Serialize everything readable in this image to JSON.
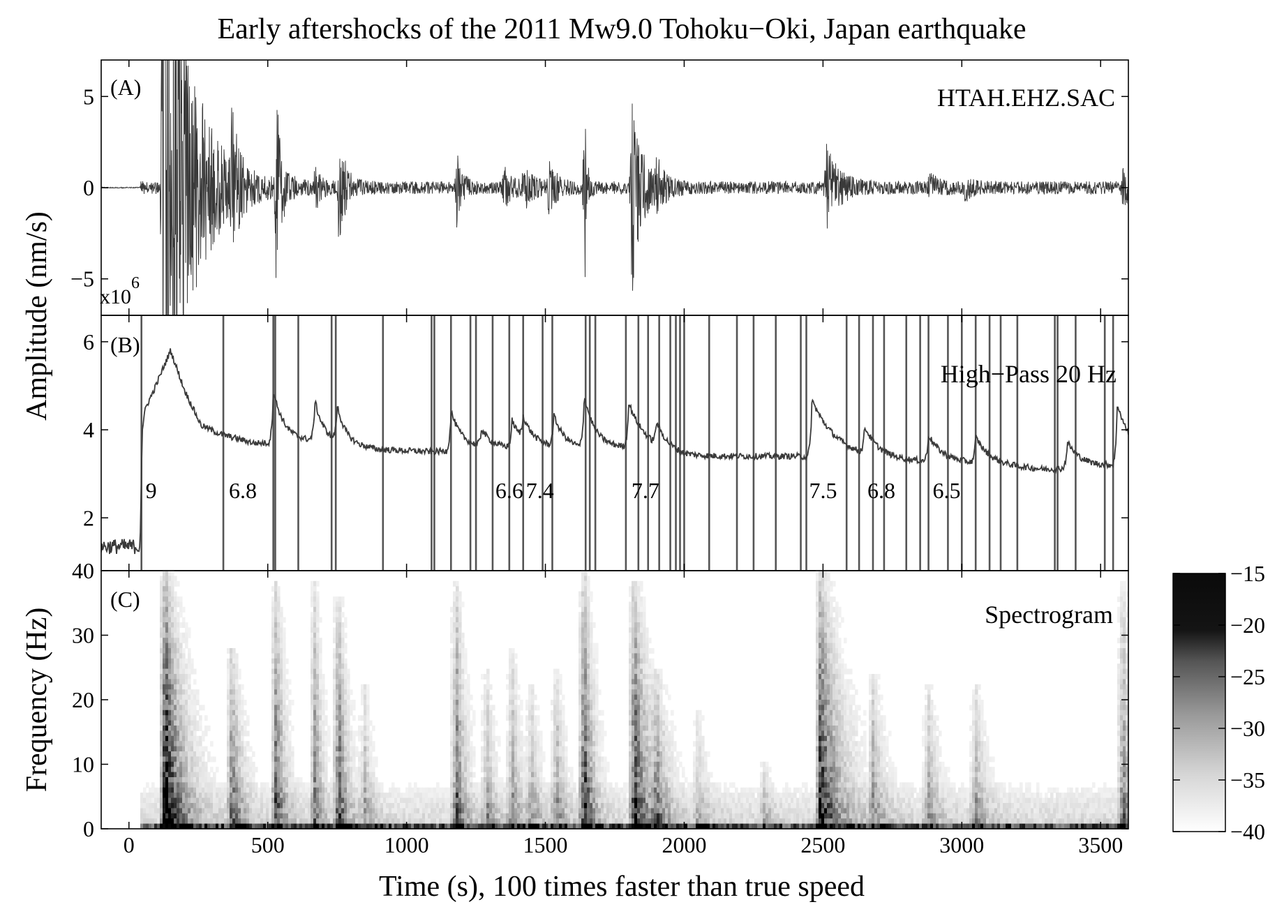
{
  "title": "Early aftershocks of the 2011 Mw9.0 Tohoku−Oki, Japan earthquake",
  "shared_x": {
    "label": "Time (s), 100 times faster than true speed",
    "range": [
      -100,
      3600
    ],
    "ticks": [
      0,
      500,
      1000,
      1500,
      2000,
      2500,
      3000,
      3500
    ]
  },
  "shared_ylabel": "Amplitude (nm/s)",
  "chart_data": [
    {
      "panel": "(A)",
      "type": "line",
      "annotation": "HTAH.EHZ.SAC",
      "ylim": [
        -7,
        7
      ],
      "yticks": [
        -5,
        0,
        5
      ],
      "ytick_labels": [
        "−5",
        "0",
        "5"
      ],
      "y_multiplier": "x10",
      "y_multiplier_exp": "6",
      "noise_base": 0.35,
      "events": [
        {
          "t": 120,
          "amp": 22,
          "decay": 90
        },
        {
          "t": 370,
          "amp": 3.2,
          "decay": 25
        },
        {
          "t": 530,
          "amp": 5.2,
          "decay": 20
        },
        {
          "t": 670,
          "amp": 1.2,
          "decay": 20
        },
        {
          "t": 755,
          "amp": 3.0,
          "decay": 25
        },
        {
          "t": 1180,
          "amp": 1.9,
          "decay": 20
        },
        {
          "t": 1350,
          "amp": 1.0,
          "decay": 30
        },
        {
          "t": 1420,
          "amp": 1.2,
          "decay": 30
        },
        {
          "t": 1510,
          "amp": 1.3,
          "decay": 30
        },
        {
          "t": 1640,
          "amp": 7.0,
          "decay": 8
        },
        {
          "t": 1810,
          "amp": 6.0,
          "decay": 35
        },
        {
          "t": 1900,
          "amp": 1.2,
          "decay": 30
        },
        {
          "t": 2510,
          "amp": 2.2,
          "decay": 45
        },
        {
          "t": 2880,
          "amp": 0.7,
          "decay": 30
        },
        {
          "t": 3010,
          "amp": 0.6,
          "decay": 30
        },
        {
          "t": 3580,
          "amp": 1.1,
          "decay": 20
        }
      ]
    },
    {
      "panel": "(B)",
      "type": "line",
      "annotation": "High−Pass 20 Hz",
      "ylim": [
        0.8,
        6.6
      ],
      "yticks": [
        2,
        4,
        6
      ],
      "ytick_labels": [
        "2",
        "4",
        "6"
      ],
      "pre_event_level": 1.35,
      "baseline": [
        [
          45,
          3.9
        ],
        [
          60,
          4.5
        ],
        [
          90,
          4.9
        ],
        [
          150,
          5.8
        ],
        [
          200,
          4.9
        ],
        [
          260,
          4.1
        ],
        [
          330,
          3.9
        ],
        [
          450,
          3.7
        ],
        [
          510,
          3.7
        ],
        [
          700,
          3.75
        ],
        [
          900,
          3.55
        ],
        [
          1100,
          3.5
        ],
        [
          1300,
          3.6
        ],
        [
          1500,
          3.6
        ],
        [
          1650,
          3.55
        ],
        [
          1800,
          3.6
        ],
        [
          2000,
          3.4
        ],
        [
          2400,
          3.4
        ],
        [
          2700,
          3.3
        ],
        [
          3000,
          3.25
        ],
        [
          3300,
          3.1
        ],
        [
          3600,
          3.2
        ]
      ],
      "bumps": [
        {
          "t": 520,
          "amp": 1.2,
          "tau": 40
        },
        {
          "t": 670,
          "amp": 0.9,
          "tau": 30
        },
        {
          "t": 750,
          "amp": 0.8,
          "tau": 30
        },
        {
          "t": 1160,
          "amp": 0.9,
          "tau": 40
        },
        {
          "t": 1270,
          "amp": 0.4,
          "tau": 30
        },
        {
          "t": 1380,
          "amp": 0.6,
          "tau": 40
        },
        {
          "t": 1420,
          "amp": 0.5,
          "tau": 40
        },
        {
          "t": 1530,
          "amp": 0.7,
          "tau": 40
        },
        {
          "t": 1640,
          "amp": 1.2,
          "tau": 40
        },
        {
          "t": 1800,
          "amp": 1.0,
          "tau": 60
        },
        {
          "t": 1900,
          "amp": 0.5,
          "tau": 40
        },
        {
          "t": 2460,
          "amp": 1.3,
          "tau": 90
        },
        {
          "t": 2650,
          "amp": 0.6,
          "tau": 50
        },
        {
          "t": 2880,
          "amp": 0.6,
          "tau": 50
        },
        {
          "t": 3050,
          "amp": 0.6,
          "tau": 50
        },
        {
          "t": 3380,
          "amp": 0.6,
          "tau": 50
        },
        {
          "t": 3560,
          "amp": 1.4,
          "tau": 60
        }
      ],
      "event_lines": [
        45,
        340,
        520,
        527,
        610,
        730,
        745,
        915,
        1090,
        1100,
        1160,
        1230,
        1250,
        1310,
        1370,
        1420,
        1490,
        1525,
        1645,
        1660,
        1680,
        1790,
        1835,
        1870,
        1910,
        1950,
        1970,
        1985,
        2000,
        2090,
        2190,
        2250,
        2330,
        2420,
        2440,
        2585,
        2630,
        2680,
        2720,
        2800,
        2850,
        2880,
        2950,
        3000,
        3050,
        3100,
        3140,
        3200,
        3335,
        3345,
        3410,
        3515,
        3545
      ],
      "magnitude_labels": [
        {
          "t": 60,
          "label": "9"
        },
        {
          "t": 360,
          "label": "6.8"
        },
        {
          "t": 1320,
          "label": "6.6"
        },
        {
          "t": 1430,
          "label": "7.4"
        },
        {
          "t": 1810,
          "label": "7.7"
        },
        {
          "t": 2450,
          "label": "7.5"
        },
        {
          "t": 2660,
          "label": "6.8"
        },
        {
          "t": 2895,
          "label": "6.5"
        }
      ]
    },
    {
      "panel": "(C)",
      "type": "heatmap",
      "annotation": "Spectrogram",
      "ylabel": "Frequency (Hz)",
      "ylim": [
        0,
        40
      ],
      "yticks": [
        0,
        10,
        20,
        30,
        40
      ],
      "ytick_labels": [
        "0",
        "10",
        "20",
        "30",
        "40"
      ],
      "events": [
        {
          "t": 130,
          "strength": 1.0,
          "top": 40,
          "width": 60
        },
        {
          "t": 370,
          "strength": 0.5,
          "top": 28,
          "width": 40
        },
        {
          "t": 530,
          "strength": 0.6,
          "top": 38,
          "width": 30
        },
        {
          "t": 670,
          "strength": 0.45,
          "top": 38,
          "width": 25
        },
        {
          "t": 755,
          "strength": 0.6,
          "top": 36,
          "width": 30
        },
        {
          "t": 850,
          "strength": 0.25,
          "top": 22,
          "width": 30
        },
        {
          "t": 1180,
          "strength": 0.55,
          "top": 38,
          "width": 30
        },
        {
          "t": 1290,
          "strength": 0.3,
          "top": 25,
          "width": 30
        },
        {
          "t": 1380,
          "strength": 0.35,
          "top": 28,
          "width": 30
        },
        {
          "t": 1450,
          "strength": 0.3,
          "top": 22,
          "width": 30
        },
        {
          "t": 1540,
          "strength": 0.35,
          "top": 25,
          "width": 30
        },
        {
          "t": 1640,
          "strength": 0.75,
          "top": 40,
          "width": 30
        },
        {
          "t": 1820,
          "strength": 0.75,
          "top": 38,
          "width": 50
        },
        {
          "t": 1900,
          "strength": 0.35,
          "top": 25,
          "width": 40
        },
        {
          "t": 2050,
          "strength": 0.2,
          "top": 18,
          "width": 40
        },
        {
          "t": 2290,
          "strength": 0.2,
          "top": 10,
          "width": 30
        },
        {
          "t": 2490,
          "strength": 0.75,
          "top": 40,
          "width": 70
        },
        {
          "t": 2680,
          "strength": 0.3,
          "top": 24,
          "width": 40
        },
        {
          "t": 2880,
          "strength": 0.3,
          "top": 22,
          "width": 40
        },
        {
          "t": 3050,
          "strength": 0.3,
          "top": 22,
          "width": 40
        },
        {
          "t": 3580,
          "strength": 0.45,
          "top": 38,
          "width": 30
        }
      ],
      "colorbar": {
        "range": [
          -40,
          -15
        ],
        "ticks": [
          -15,
          -20,
          -25,
          -30,
          -35,
          -40
        ],
        "tick_labels": [
          "−15",
          "−20",
          "−25",
          "−30",
          "−35",
          "−40"
        ]
      }
    }
  ],
  "colors": {
    "trace": "#3a3a3a",
    "event_line": "#555555",
    "axis": "#000000"
  }
}
